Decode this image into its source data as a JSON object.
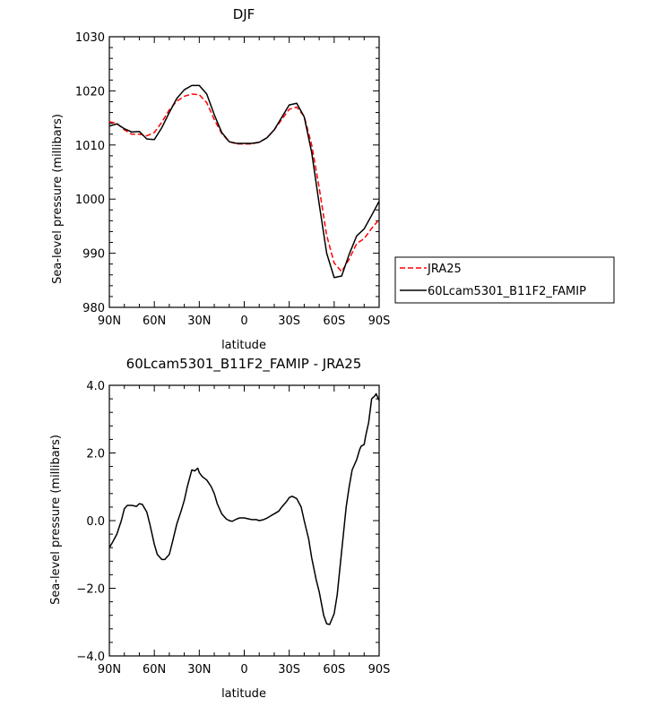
{
  "chart_data": [
    {
      "type": "line",
      "title": "DJF",
      "xlabel": "latitude",
      "ylabel": "Sea-level pressure (millibars)",
      "xlim": [
        90,
        -90
      ],
      "ylim": [
        980,
        1030
      ],
      "x_ticks": [
        90,
        60,
        30,
        0,
        -30,
        -60,
        -90
      ],
      "x_tick_labels": [
        "90N",
        "60N",
        "30N",
        "0",
        "30S",
        "60S",
        "90S"
      ],
      "y_ticks": [
        980,
        990,
        1000,
        1010,
        1020,
        1030
      ],
      "y_tick_labels": [
        "980",
        "990",
        "1000",
        "1010",
        "1020",
        "1030"
      ],
      "grid": false,
      "legend": "outside-right",
      "series": [
        {
          "name": "JRA25",
          "color": "#ff0000",
          "style": "dashed",
          "x": [
            90,
            85,
            80,
            75,
            70,
            65,
            60,
            55,
            50,
            45,
            40,
            35,
            30,
            25,
            20,
            15,
            10,
            5,
            0,
            -5,
            -10,
            -15,
            -20,
            -25,
            -30,
            -35,
            -40,
            -45,
            -50,
            -55,
            -60,
            -65,
            -70,
            -75,
            -80,
            -85,
            -90
          ],
          "values": [
            1014.3,
            1014.0,
            1012.8,
            1012.0,
            1012.0,
            1011.7,
            1012.3,
            1014.2,
            1016.5,
            1018.1,
            1019.0,
            1019.4,
            1019.3,
            1017.8,
            1014.7,
            1012.1,
            1010.6,
            1010.2,
            1010.2,
            1010.2,
            1010.5,
            1011.3,
            1012.8,
            1014.7,
            1016.6,
            1017.0,
            1015.3,
            1010.0,
            1002.1,
            993.3,
            988.2,
            986.6,
            988.9,
            991.8,
            992.7,
            994.6,
            996.2
          ]
        },
        {
          "name": "60Lcam5301_B11F2_FAMIP",
          "color": "#000000",
          "style": "solid",
          "x": [
            90,
            85,
            80,
            75,
            70,
            65,
            60,
            55,
            50,
            45,
            40,
            35,
            30,
            25,
            20,
            15,
            10,
            5,
            0,
            -5,
            -10,
            -15,
            -20,
            -25,
            -30,
            -35,
            -40,
            -45,
            -50,
            -55,
            -60,
            -65,
            -70,
            -75,
            -80,
            -85,
            -90
          ],
          "values": [
            1013.5,
            1013.9,
            1013.0,
            1012.4,
            1012.5,
            1011.1,
            1011.0,
            1013.2,
            1016.0,
            1018.6,
            1020.2,
            1021.0,
            1021.0,
            1019.4,
            1015.6,
            1012.3,
            1010.6,
            1010.3,
            1010.3,
            1010.3,
            1010.5,
            1011.3,
            1012.8,
            1015.1,
            1017.4,
            1017.7,
            1015.2,
            1008.6,
            999.1,
            990.0,
            985.5,
            985.8,
            989.8,
            993.2,
            994.5,
            997.0,
            999.6
          ]
        }
      ]
    },
    {
      "type": "line",
      "title": "60Lcam5301_B11F2_FAMIP - JRA25",
      "xlabel": "latitude",
      "ylabel": "Sea-level pressure (millibars)",
      "xlim": [
        90,
        -90
      ],
      "ylim": [
        -4.0,
        4.0
      ],
      "x_ticks": [
        90,
        60,
        30,
        0,
        -30,
        -60,
        -90
      ],
      "x_tick_labels": [
        "90N",
        "60N",
        "30N",
        "0",
        "30S",
        "60S",
        "90S"
      ],
      "y_ticks": [
        -4.0,
        -2.0,
        0.0,
        2.0,
        4.0
      ],
      "y_tick_labels": [
        "−4.0",
        "−2.0",
        "0.0",
        "2.0",
        "4.0"
      ],
      "grid": false,
      "series": [
        {
          "color": "#000000",
          "style": "solid",
          "x": [
            90,
            88,
            85,
            82,
            80,
            78,
            75,
            72,
            70,
            68,
            65,
            63,
            60,
            58,
            55,
            53,
            50,
            48,
            45,
            42,
            40,
            38,
            35,
            33,
            31,
            30,
            28,
            25,
            22,
            20,
            18,
            15,
            12,
            10,
            8,
            5,
            3,
            0,
            -3,
            -5,
            -8,
            -10,
            -13,
            -15,
            -18,
            -20,
            -23,
            -25,
            -28,
            -30,
            -32,
            -35,
            -38,
            -40,
            -43,
            -45,
            -48,
            -50,
            -53,
            -55,
            -57,
            -60,
            -62,
            -65,
            -68,
            -70,
            -72,
            -75,
            -77,
            -78,
            -80,
            -81,
            -83,
            -85,
            -87,
            -88,
            -90
          ],
          "values": [
            -0.8,
            -0.65,
            -0.4,
            0.0,
            0.35,
            0.45,
            0.45,
            0.42,
            0.5,
            0.48,
            0.25,
            -0.1,
            -0.7,
            -1.0,
            -1.15,
            -1.15,
            -1.0,
            -0.65,
            -0.1,
            0.3,
            0.6,
            1.0,
            1.5,
            1.47,
            1.55,
            1.42,
            1.3,
            1.2,
            1.0,
            0.8,
            0.5,
            0.2,
            0.05,
            0.0,
            -0.02,
            0.05,
            0.08,
            0.08,
            0.05,
            0.03,
            0.03,
            0.0,
            0.03,
            0.07,
            0.15,
            0.2,
            0.28,
            0.4,
            0.55,
            0.68,
            0.72,
            0.65,
            0.4,
            0.0,
            -0.55,
            -1.1,
            -1.75,
            -2.1,
            -2.8,
            -3.05,
            -3.07,
            -2.75,
            -2.2,
            -0.9,
            0.4,
            1.0,
            1.5,
            1.8,
            2.1,
            2.2,
            2.25,
            2.5,
            2.9,
            3.6,
            3.68,
            3.75,
            3.55
          ]
        }
      ]
    }
  ]
}
